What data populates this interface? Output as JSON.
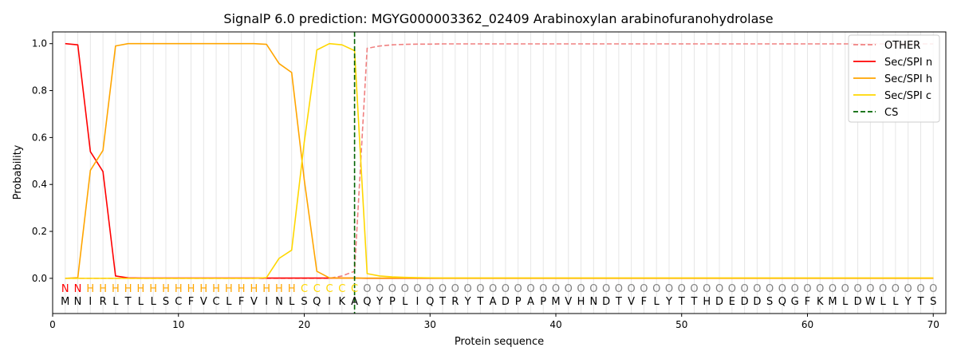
{
  "chart_data": {
    "type": "line",
    "title": "SignalP 6.0 prediction: MGYG000003362_02409 Arabinoxylan arabinofuranohydrolase",
    "xlabel": "Protein sequence",
    "ylabel": "Probability",
    "xlim": [
      0,
      71
    ],
    "ylim": [
      -0.15,
      1.05
    ],
    "x_ticks": [
      0,
      10,
      20,
      30,
      40,
      50,
      60,
      70
    ],
    "y_ticks": [
      0.0,
      0.2,
      0.4,
      0.6,
      0.8,
      1.0
    ],
    "x_tick_labels": [
      "0",
      "10",
      "20",
      "30",
      "40",
      "50",
      "60",
      "70"
    ],
    "y_tick_labels": [
      "0.0",
      "0.2",
      "0.4",
      "0.6",
      "0.8",
      "1.0"
    ],
    "grid": "vertical lines at each residue",
    "legend_position": "top-right",
    "sequence": [
      "M",
      "N",
      "I",
      "R",
      "L",
      "T",
      "L",
      "L",
      "S",
      "C",
      "F",
      "V",
      "C",
      "L",
      "F",
      "V",
      "I",
      "N",
      "L",
      "S",
      "Q",
      "I",
      "K",
      "A",
      "Q",
      "Y",
      "P",
      "L",
      "I",
      "Q",
      "T",
      "R",
      "Y",
      "T",
      "A",
      "D",
      "P",
      "A",
      "P",
      "M",
      "V",
      "H",
      "N",
      "D",
      "T",
      "V",
      "F",
      "L",
      "Y",
      "T",
      "T",
      "H",
      "D",
      "E",
      "D",
      "D",
      "S",
      "Q",
      "G",
      "F",
      "K",
      "M",
      "L",
      "D",
      "W",
      "L",
      "L",
      "Y",
      "T",
      "S"
    ],
    "region_labels": [
      "N",
      "N",
      "H",
      "H",
      "H",
      "H",
      "H",
      "H",
      "H",
      "H",
      "H",
      "H",
      "H",
      "H",
      "H",
      "H",
      "H",
      "H",
      "H",
      "C",
      "C",
      "C",
      "C",
      "C",
      "O",
      "O",
      "O",
      "O",
      "O",
      "O",
      "O",
      "O",
      "O",
      "O",
      "O",
      "O",
      "O",
      "O",
      "O",
      "O",
      "O",
      "O",
      "O",
      "O",
      "O",
      "O",
      "O",
      "O",
      "O",
      "O",
      "O",
      "O",
      "O",
      "O",
      "O",
      "O",
      "O",
      "O",
      "O",
      "O",
      "O",
      "O",
      "O",
      "O",
      "O",
      "O",
      "O",
      "O",
      "O",
      "O"
    ],
    "region_colors": {
      "N": "#ff0000",
      "H": "#ffa500",
      "C": "#ffd700",
      "O": "#808080"
    },
    "cleavage_site": 24,
    "series": [
      {
        "name": "OTHER",
        "color": "#f08080",
        "style": "dashed",
        "values": [
          0,
          0,
          0,
          0,
          0,
          0,
          0,
          0,
          0,
          0,
          0,
          0,
          0,
          0,
          0,
          0,
          0,
          0,
          0,
          0,
          0,
          0,
          0.01,
          0.03,
          0.98,
          0.99,
          0.995,
          0.997,
          0.998,
          0.998,
          0.999,
          0.999,
          0.999,
          0.999,
          0.999,
          0.999,
          0.999,
          0.999,
          0.999,
          0.999,
          0.999,
          0.999,
          0.999,
          0.999,
          0.999,
          0.999,
          0.999,
          0.999,
          0.999,
          0.999,
          0.999,
          0.999,
          0.999,
          0.999,
          0.999,
          0.999,
          0.999,
          0.999,
          0.999,
          0.999,
          0.999,
          0.999,
          0.999,
          0.999,
          0.999,
          0.999,
          0.999,
          0.999,
          0.999,
          0.999
        ]
      },
      {
        "name": "Sec/SPI n",
        "color": "#ff0000",
        "style": "solid",
        "values": [
          1.0,
          0.995,
          0.54,
          0.455,
          0.01,
          0.002,
          0.001,
          0.001,
          0.001,
          0.001,
          0.001,
          0.001,
          0.001,
          0.001,
          0.001,
          0.001,
          0.001,
          0.001,
          0.001,
          0.001,
          0.001,
          0.001,
          0.001,
          0.001,
          0,
          0,
          0,
          0,
          0,
          0,
          0,
          0,
          0,
          0,
          0,
          0,
          0,
          0,
          0,
          0,
          0,
          0,
          0,
          0,
          0,
          0,
          0,
          0,
          0,
          0,
          0,
          0,
          0,
          0,
          0,
          0,
          0,
          0,
          0,
          0,
          0,
          0,
          0,
          0,
          0,
          0,
          0,
          0,
          0,
          0
        ]
      },
      {
        "name": "Sec/SPI h",
        "color": "#ffa500",
        "style": "solid",
        "values": [
          0,
          0.003,
          0.46,
          0.545,
          0.99,
          1.0,
          1.0,
          1.0,
          1.0,
          1.0,
          1.0,
          1.0,
          1.0,
          1.0,
          1.0,
          1.0,
          0.997,
          0.915,
          0.877,
          0.42,
          0.03,
          0.002,
          0.001,
          0.001,
          0.001,
          0.001,
          0.001,
          0.001,
          0.001,
          0.001,
          0.001,
          0.001,
          0.001,
          0.001,
          0.001,
          0.001,
          0.001,
          0.001,
          0.001,
          0.001,
          0.001,
          0.001,
          0.001,
          0.001,
          0.001,
          0.001,
          0.001,
          0.001,
          0.001,
          0.001,
          0.001,
          0.001,
          0.001,
          0.001,
          0.001,
          0.001,
          0.001,
          0.001,
          0.001,
          0.001,
          0.001,
          0.001,
          0.001,
          0.001,
          0.001,
          0.001,
          0.001,
          0.001,
          0.001,
          0.001
        ]
      },
      {
        "name": "Sec/SPI c",
        "color": "#ffd700",
        "style": "solid",
        "values": [
          0,
          0,
          0,
          0,
          0,
          0,
          0,
          0,
          0,
          0,
          0,
          0,
          0,
          0,
          0,
          0,
          0.003,
          0.085,
          0.12,
          0.58,
          0.973,
          1.0,
          0.995,
          0.97,
          0.02,
          0.01,
          0.006,
          0.004,
          0.003,
          0.002,
          0.001,
          0.001,
          0.001,
          0.001,
          0.001,
          0.001,
          0.001,
          0.001,
          0.001,
          0.001,
          0.001,
          0.001,
          0.001,
          0.001,
          0.001,
          0.001,
          0.001,
          0.001,
          0.001,
          0.001,
          0.001,
          0.001,
          0.001,
          0.001,
          0.001,
          0.001,
          0.001,
          0.001,
          0.001,
          0.001,
          0.001,
          0.001,
          0.001,
          0.001,
          0.001,
          0.001,
          0.001,
          0.001,
          0.001,
          0.001
        ]
      }
    ],
    "legend": [
      {
        "label": "OTHER",
        "color": "#f08080",
        "style": "dashed"
      },
      {
        "label": "Sec/SPI n",
        "color": "#ff0000",
        "style": "solid"
      },
      {
        "label": "Sec/SPI h",
        "color": "#ffa500",
        "style": "solid"
      },
      {
        "label": "Sec/SPI c",
        "color": "#ffd700",
        "style": "solid"
      },
      {
        "label": "CS",
        "color": "#006400",
        "style": "dashed"
      }
    ]
  }
}
